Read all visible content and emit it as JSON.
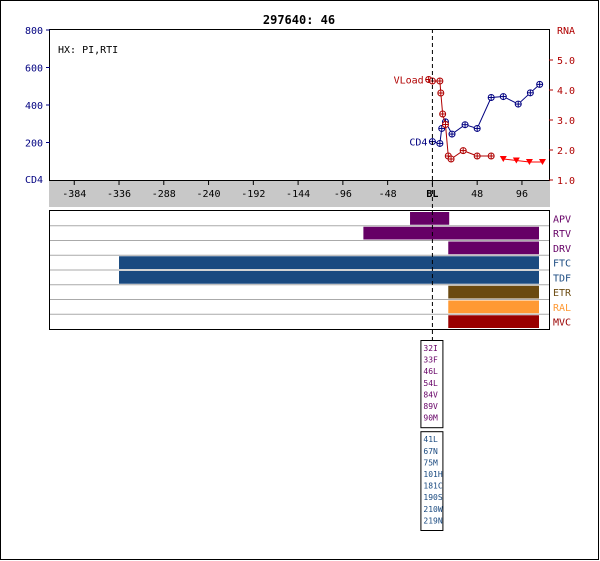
{
  "title": "297640: 46",
  "hx_label": "HX: PI,RTI",
  "colors": {
    "cd4": "#000080",
    "rna": "#b00000",
    "axis_band": "#c8c8c8",
    "row_line": "#aaaaaa",
    "drug_purple": "#660066",
    "drug_blue": "#1a4a80",
    "drug_brown": "#6b4a10",
    "drug_orange": "#ff9933",
    "drug_red": "#990000"
  },
  "chart_data": {
    "type": "line",
    "title": "297640: 46",
    "x_tick_labels": [
      "-384",
      "-336",
      "-288",
      "-240",
      "-192",
      "-144",
      "-96",
      "-48",
      "BL",
      "48",
      "96"
    ],
    "x_tick_values": [
      -384,
      -336,
      -288,
      -240,
      -192,
      -144,
      -96,
      -48,
      0,
      48,
      96
    ],
    "xlim": [
      -410,
      125
    ],
    "baseline_label": "BL",
    "left_axis": {
      "label": "CD4",
      "ylim": [
        0,
        800
      ],
      "tick_labels": [
        "800",
        "600",
        "400",
        "200"
      ],
      "tick_values": [
        800,
        600,
        400,
        200
      ]
    },
    "right_axis": {
      "label": "RNA",
      "ylim": [
        1.0,
        6.0
      ],
      "tick_labels": [
        "5.0",
        "4.0",
        "3.0",
        "2.0",
        "1.0"
      ],
      "tick_values": [
        5.0,
        4.0,
        3.0,
        2.0,
        1.0
      ]
    },
    "series": [
      {
        "name": "CD4",
        "axis": "left",
        "color": "#000080",
        "marker": "circle-cross",
        "x": [
          0,
          8,
          10,
          14,
          21,
          35,
          48,
          63,
          76,
          92,
          105,
          115
        ],
        "y": [
          205,
          195,
          275,
          310,
          245,
          295,
          275,
          440,
          445,
          405,
          465,
          510
        ]
      },
      {
        "name": "VLoad",
        "axis": "right",
        "color": "#b00000",
        "marker": "circle-cross",
        "x": [
          -4,
          0,
          8,
          9,
          11,
          14,
          17,
          20,
          33,
          48,
          63
        ],
        "y": [
          4.35,
          4.3,
          4.3,
          3.9,
          3.2,
          2.85,
          1.8,
          1.7,
          1.98,
          1.8,
          1.8
        ]
      },
      {
        "name": "VLoad-below-limit",
        "axis": "right",
        "color": "#ff0000",
        "marker": "triangle-down",
        "x": [
          76,
          90,
          104,
          118
        ],
        "y": [
          1.7,
          1.65,
          1.6,
          1.6
        ]
      }
    ],
    "series_labels": {
      "cd4": "CD4",
      "vload": "VLoad"
    },
    "drugs": [
      {
        "name": "APV",
        "color": "#660066",
        "label_color": "#660066",
        "start": -24,
        "end": 18
      },
      {
        "name": "RTV",
        "color": "#660066",
        "label_color": "#660066",
        "start": -74,
        "end": 140
      },
      {
        "name": "DRV",
        "color": "#660066",
        "label_color": "#660066",
        "start": 17,
        "end": 140
      },
      {
        "name": "FTC",
        "color": "#1a4a80",
        "label_color": "#1a4a80",
        "start": -336,
        "end": 140
      },
      {
        "name": "TDF",
        "color": "#1a4a80",
        "label_color": "#1a4a80",
        "start": -336,
        "end": 140
      },
      {
        "name": "ETR",
        "color": "#6b4a10",
        "label_color": "#6b4a10",
        "start": 17,
        "end": 140
      },
      {
        "name": "RAL",
        "color": "#ff9933",
        "label_color": "#ff9933",
        "start": 17,
        "end": 140
      },
      {
        "name": "MVC",
        "color": "#990000",
        "label_color": "#990000",
        "start": 17,
        "end": 140
      }
    ],
    "mutation_boxes": [
      {
        "color": "#660066",
        "items": [
          "32I",
          "33F",
          "46L",
          "54L",
          "84V",
          "89V",
          "90M"
        ]
      },
      {
        "color": "#1a4a80",
        "items": [
          "41L",
          "67N",
          "75M",
          "101H",
          "181C",
          "190S",
          "210W",
          "219N"
        ]
      }
    ]
  }
}
